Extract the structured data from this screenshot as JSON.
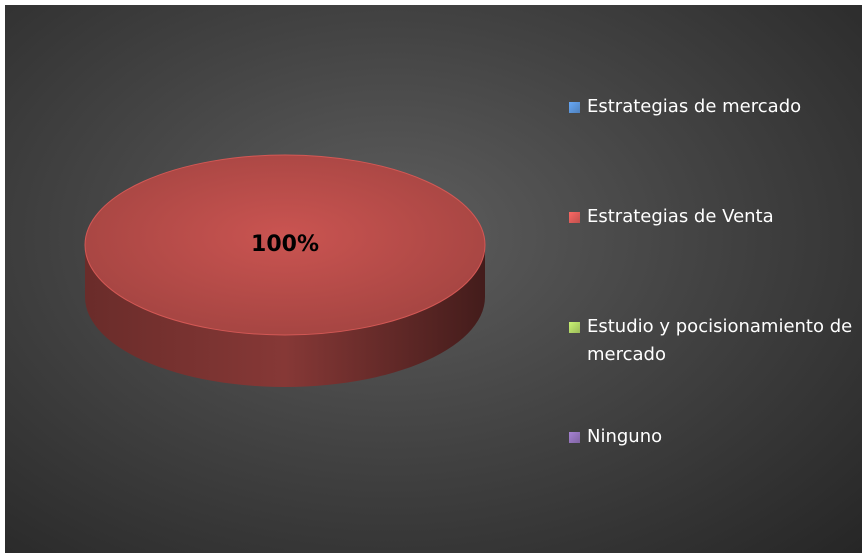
{
  "chart_data": {
    "type": "pie",
    "categories": [
      "Estrategias de mercado",
      "Estrategias de Venta",
      "Estudio y pocisionamiento de mercado",
      "Ninguno"
    ],
    "values": [
      0,
      100,
      0,
      0
    ],
    "value_labels": [
      null,
      "100%",
      null,
      null
    ],
    "colors": [
      "#4f81bd",
      "#c0504d",
      "#9bbb59",
      "#8064a2"
    ],
    "legend": "right"
  }
}
